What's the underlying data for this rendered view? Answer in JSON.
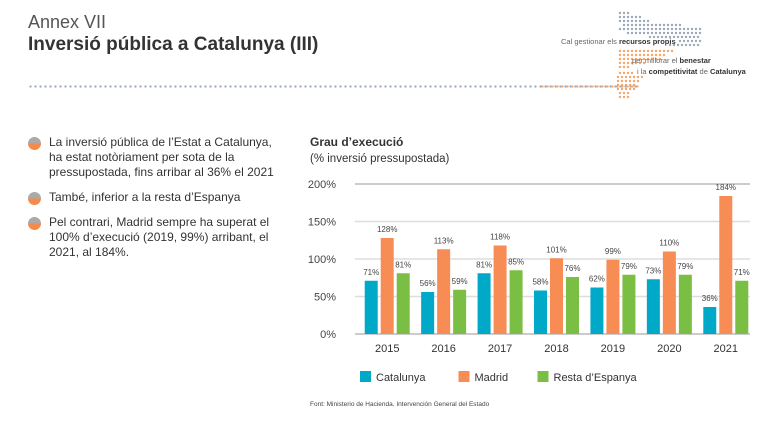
{
  "header": {
    "annex": "Annex VII",
    "title": "Inversió pública a Catalunya (III)"
  },
  "logo": {
    "line1_a": "Cal gestionar els ",
    "line1_b": "recursos propis",
    "line2_a": "per millorar el ",
    "line2_b": "benestar",
    "line3_a": "i la ",
    "line3_b": "competitivitat",
    "line3_c": " de ",
    "line3_d": "Catalunya"
  },
  "bullets": [
    "La inversió pública de l’Estat a Catalunya, ha estat notòriament per sota de la  pressupostada, fins arribar al 36% el 2021",
    "També, inferior a la resta d’Espanya",
    "Pel contrari, Madrid sempre ha superat el 100% d’execució (2019, 99%) arribant, el 2021, al 184%."
  ],
  "source": "Font: Ministerio de Hacienda. Intervención General del Estado",
  "colors": {
    "Catalunya": "#00a9c7",
    "Madrid": "#f78c55",
    "Resta d’Espanya": "#7abf44"
  },
  "chart_data": {
    "type": "bar",
    "title": "Grau d’execució",
    "subtitle": "(% inversió pressupostada)",
    "categories": [
      "2015",
      "2016",
      "2017",
      "2018",
      "2019",
      "2020",
      "2021"
    ],
    "series": [
      {
        "name": "Catalunya",
        "values": [
          71,
          56,
          81,
          58,
          62,
          73,
          36
        ]
      },
      {
        "name": "Madrid",
        "values": [
          128,
          113,
          118,
          101,
          99,
          110,
          184
        ]
      },
      {
        "name": "Resta d’Espanya",
        "values": [
          81,
          59,
          85,
          76,
          79,
          79,
          71
        ]
      }
    ],
    "yticks": [
      "0%",
      "50%",
      "100%",
      "150%",
      "200%"
    ],
    "ylim": [
      0,
      200
    ],
    "grid": true,
    "legend": "bottom"
  }
}
